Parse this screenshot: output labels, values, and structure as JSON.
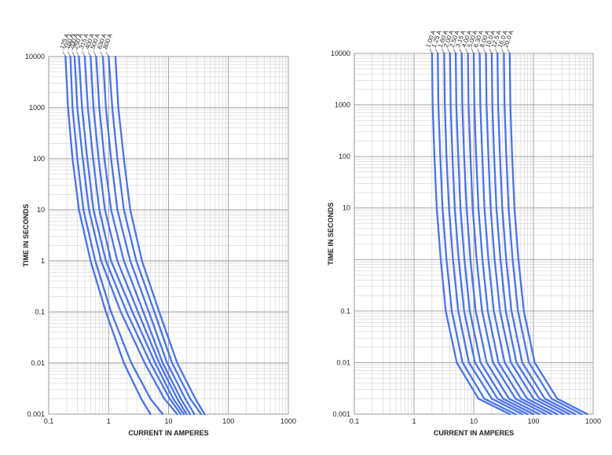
{
  "chart_data": [
    {
      "type": "line",
      "xscale": "log",
      "yscale": "log",
      "xlim": [
        0.1,
        1000
      ],
      "ylim": [
        0.001,
        10000
      ],
      "xlabel": "CURRENT IN AMPERES",
      "ylabel": "TIME IN SECONDS",
      "xticks": [
        "0.1",
        "1",
        "10",
        "100",
        "1000"
      ],
      "yticks": [
        "0.001",
        "0.01",
        "0.1",
        "1",
        "10",
        "100",
        "1000",
        "10000"
      ],
      "grid": true,
      "line_color": "#4a73e8",
      "series": [
        {
          "name": ".125 A",
          "x": [
            0.19,
            0.21,
            0.25,
            0.32,
            0.5,
            0.9,
            1.8,
            3.5,
            5.0
          ],
          "y": [
            10000,
            1000,
            100,
            10,
            1,
            0.1,
            0.01,
            0.002,
            0.001
          ]
        },
        {
          "name": ".160 A",
          "x": [
            0.23,
            0.25,
            0.3,
            0.38,
            0.6,
            1.1,
            2.4,
            5.0,
            8.0
          ],
          "y": [
            10000,
            1000,
            100,
            10,
            1,
            0.1,
            0.01,
            0.002,
            0.001
          ]
        },
        {
          "name": ".200 A",
          "x": [
            0.27,
            0.3,
            0.37,
            0.47,
            0.75,
            1.6,
            4.0,
            8.5,
            14.0
          ],
          "y": [
            10000,
            1000,
            100,
            10,
            1,
            0.1,
            0.01,
            0.002,
            0.001
          ]
        },
        {
          "name": ".250 A",
          "x": [
            0.32,
            0.36,
            0.44,
            0.56,
            0.9,
            2.0,
            5.0,
            10.5,
            16.0
          ],
          "y": [
            10000,
            1000,
            100,
            10,
            1,
            0.1,
            0.01,
            0.002,
            0.001
          ]
        },
        {
          "name": ".315 A",
          "x": [
            0.4,
            0.45,
            0.55,
            0.7,
            1.1,
            2.5,
            6.0,
            12.0,
            18.0
          ],
          "y": [
            10000,
            1000,
            100,
            10,
            1,
            0.1,
            0.01,
            0.002,
            0.001
          ]
        },
        {
          "name": ".400 A",
          "x": [
            0.5,
            0.56,
            0.68,
            0.87,
            1.4,
            3.1,
            7.0,
            14.0,
            20.0
          ],
          "y": [
            10000,
            1000,
            100,
            10,
            1,
            0.1,
            0.01,
            0.002,
            0.001
          ]
        },
        {
          "name": ".500 A",
          "x": [
            0.62,
            0.7,
            0.85,
            1.1,
            1.8,
            3.8,
            8.0,
            16.0,
            23.0
          ],
          "y": [
            10000,
            1000,
            100,
            10,
            1,
            0.1,
            0.01,
            0.002,
            0.001
          ]
        },
        {
          "name": ".630 A",
          "x": [
            0.8,
            0.9,
            1.1,
            1.4,
            2.3,
            4.7,
            9.5,
            19.0,
            27.0
          ],
          "y": [
            10000,
            1000,
            100,
            10,
            1,
            0.1,
            0.01,
            0.002,
            0.001
          ]
        },
        {
          "name": ".800 A",
          "x": [
            1.0,
            1.15,
            1.4,
            1.8,
            2.9,
            5.8,
            11.5,
            23.0,
            35.0
          ],
          "y": [
            10000,
            1000,
            100,
            10,
            1,
            0.1,
            0.01,
            0.002,
            0.001
          ]
        },
        {
          "name": "",
          "x": [
            1.3,
            1.45,
            1.8,
            2.3,
            3.6,
            7.0,
            14.0,
            28.0,
            40.0
          ],
          "y": [
            10000,
            1000,
            100,
            10,
            1,
            0.1,
            0.01,
            0.002,
            0.001
          ]
        }
      ]
    },
    {
      "type": "line",
      "xscale": "log",
      "yscale": "log",
      "xlim": [
        0.1,
        1000
      ],
      "ylim": [
        0.001,
        10000
      ],
      "xlabel": "CURRENT IN AMPERES",
      "ylabel": "TIME IN SECONDS",
      "xticks": [
        "0.1",
        "1",
        "10",
        "100",
        "1000"
      ],
      "yticks": [
        "0.001",
        "0.01",
        "0.1",
        "10",
        "100",
        "1000",
        "10000"
      ],
      "grid": true,
      "line_color": "#4a73e8",
      "series": [
        {
          "name": "1.00 A",
          "x": [
            2.0,
            2.05,
            2.2,
            2.4,
            2.8,
            3.4,
            5.2,
            12,
            40
          ],
          "y": [
            10000,
            1000,
            100,
            10,
            1,
            0.1,
            0.01,
            0.002,
            0.001
          ]
        },
        {
          "name": "1.25 A",
          "x": [
            2.5,
            2.56,
            2.75,
            3.0,
            3.5,
            4.3,
            6.5,
            15,
            50
          ],
          "y": [
            10000,
            1000,
            100,
            10,
            1,
            0.1,
            0.01,
            0.002,
            0.001
          ]
        },
        {
          "name": "1.60 A",
          "x": [
            3.2,
            3.28,
            3.5,
            3.85,
            4.5,
            5.5,
            8.3,
            20,
            65
          ],
          "y": [
            10000,
            1000,
            100,
            10,
            1,
            0.1,
            0.01,
            0.002,
            0.001
          ]
        },
        {
          "name": "2.00 A",
          "x": [
            4.0,
            4.1,
            4.4,
            4.8,
            5.6,
            6.9,
            10.5,
            25,
            80
          ],
          "y": [
            10000,
            1000,
            100,
            10,
            1,
            0.1,
            0.01,
            0.002,
            0.001
          ]
        },
        {
          "name": "2.50 A",
          "x": [
            5.0,
            5.1,
            5.5,
            6.0,
            7.0,
            8.6,
            13,
            31,
            100
          ],
          "y": [
            10000,
            1000,
            100,
            10,
            1,
            0.1,
            0.01,
            0.002,
            0.001
          ]
        },
        {
          "name": "3.15 A",
          "x": [
            6.3,
            6.45,
            6.9,
            7.6,
            8.8,
            10.8,
            16.5,
            39,
            125
          ],
          "y": [
            10000,
            1000,
            100,
            10,
            1,
            0.1,
            0.01,
            0.002,
            0.001
          ]
        },
        {
          "name": "4.00 A",
          "x": [
            8.0,
            8.2,
            8.8,
            9.6,
            11.2,
            13.8,
            21,
            50,
            160
          ],
          "y": [
            10000,
            1000,
            100,
            10,
            1,
            0.1,
            0.01,
            0.002,
            0.001
          ]
        },
        {
          "name": "5.00 A",
          "x": [
            10,
            10.25,
            11,
            12,
            14,
            17.2,
            26,
            62,
            200
          ],
          "y": [
            10000,
            1000,
            100,
            10,
            1,
            0.1,
            0.01,
            0.002,
            0.001
          ]
        },
        {
          "name": "6.30 A",
          "x": [
            12.6,
            12.9,
            13.9,
            15.1,
            17.6,
            21.7,
            33,
            78,
            250
          ],
          "y": [
            10000,
            1000,
            100,
            10,
            1,
            0.1,
            0.01,
            0.002,
            0.001
          ]
        },
        {
          "name": "8.00 A",
          "x": [
            16,
            16.4,
            17.6,
            19.2,
            22.4,
            27.5,
            42,
            100,
            320
          ],
          "y": [
            10000,
            1000,
            100,
            10,
            1,
            0.1,
            0.01,
            0.002,
            0.001
          ]
        },
        {
          "name": "10.0 A",
          "x": [
            20,
            20.5,
            22,
            24,
            28,
            34.4,
            52,
            125,
            400
          ],
          "y": [
            10000,
            1000,
            100,
            10,
            1,
            0.1,
            0.01,
            0.002,
            0.001
          ]
        },
        {
          "name": "12.5 A",
          "x": [
            25,
            25.6,
            27.5,
            30,
            35,
            43,
            65,
            155,
            500
          ],
          "y": [
            10000,
            1000,
            100,
            10,
            1,
            0.1,
            0.01,
            0.002,
            0.001
          ]
        },
        {
          "name": "16.0 A",
          "x": [
            32,
            32.8,
            35.2,
            38.4,
            44.8,
            55,
            84,
            200,
            640
          ],
          "y": [
            10000,
            1000,
            100,
            10,
            1,
            0.1,
            0.01,
            0.002,
            0.001
          ]
        },
        {
          "name": "20.0 A",
          "x": [
            40,
            41,
            44,
            48,
            56,
            69,
            105,
            250,
            800
          ],
          "y": [
            10000,
            1000,
            100,
            10,
            1,
            0.1,
            0.01,
            0.002,
            0.001
          ]
        }
      ]
    }
  ]
}
